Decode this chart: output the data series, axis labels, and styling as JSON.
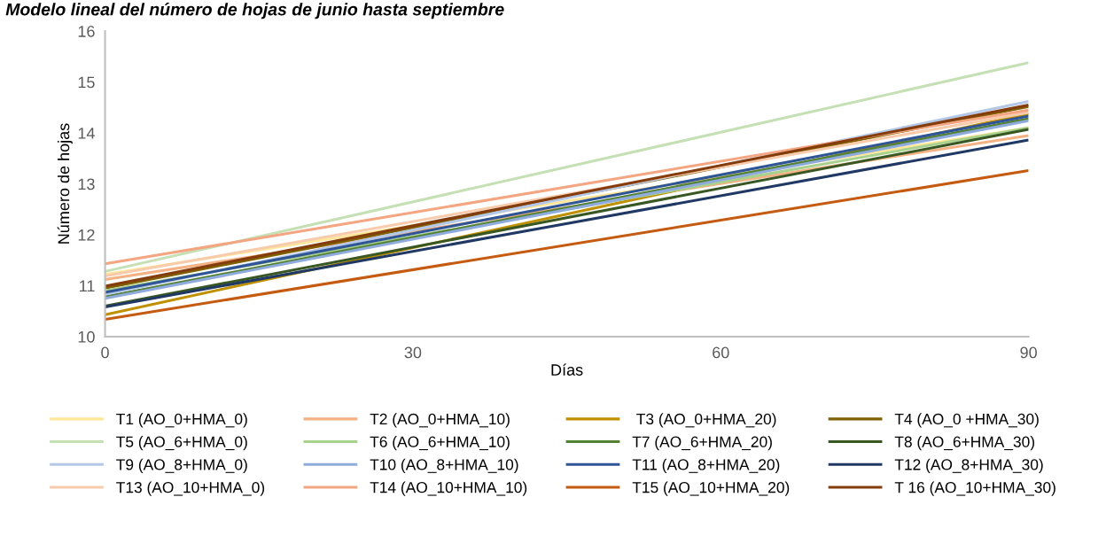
{
  "chart_data": {
    "type": "line",
    "title": "Modelo lineal del número de hojas de junio hasta septiembre",
    "xlabel": "Días",
    "ylabel": "Número de hojas",
    "x": [
      0,
      90
    ],
    "xlim": [
      0,
      90
    ],
    "xticks": [
      0,
      30,
      60,
      90
    ],
    "ylim": [
      10,
      16
    ],
    "yticks": [
      10,
      11,
      12,
      13,
      14,
      15,
      16
    ],
    "grid": false,
    "legend": "bottom",
    "marker": "none",
    "line_style": "solid",
    "series": [
      {
        "name": "T1 (AO_0+HMA_0)",
        "color": "#ffe699",
        "values": [
          11.22,
          14.1
        ]
      },
      {
        "name": "T2 (AO_0+HMA_10)",
        "color": "#f4b183",
        "values": [
          11.12,
          13.95
        ]
      },
      {
        "name": " T3 (AO_0+HMA_20)",
        "color": "#bf9000",
        "values": [
          10.43,
          14.38
        ]
      },
      {
        "name": "T4 (AO_0 +HMA_30)",
        "color": "#7f6000",
        "values": [
          10.95,
          14.52
        ]
      },
      {
        "name": "T5 (AO_6+HMA_0)",
        "color": "#c5e0b4",
        "values": [
          11.28,
          15.38
        ]
      },
      {
        "name": "T6 (AO_6+HMA_10)",
        "color": "#a9d18e",
        "values": [
          10.9,
          14.1
        ]
      },
      {
        "name": "T7 (AO_6+HMA_20)",
        "color": "#548235",
        "values": [
          10.78,
          14.28
        ]
      },
      {
        "name": "T8 (AO_6+HMA_30)",
        "color": "#385723",
        "values": [
          10.6,
          14.07
        ]
      },
      {
        "name": "T9 (AO_8+HMA_0)",
        "color": "#b4c7e7",
        "values": [
          10.83,
          14.62
        ]
      },
      {
        "name": "T10 (AO_8+HMA_10)",
        "color": "#8faadc",
        "values": [
          10.75,
          14.24
        ]
      },
      {
        "name": "T11 (AO_8+HMA_20)",
        "color": "#2f5597",
        "values": [
          10.87,
          14.33
        ]
      },
      {
        "name": "T12 (AO_8+HMA_30)",
        "color": "#203864",
        "values": [
          10.58,
          13.86
        ]
      },
      {
        "name": "T13 (AO_10+HMA_0)",
        "color": "#f8cbad",
        "values": [
          11.19,
          14.4
        ]
      },
      {
        "name": "T14 (AO_10+HMA_10)",
        "color": "#f4a582",
        "values": [
          11.43,
          14.45
        ]
      },
      {
        "name": "T15 (AO_10+HMA_20)",
        "color": "#c55a11",
        "values": [
          10.34,
          13.26
        ]
      },
      {
        "name": "T 16 (AO_10+HMA_30)",
        "color": "#843c0c",
        "values": [
          10.99,
          14.55
        ]
      }
    ]
  }
}
